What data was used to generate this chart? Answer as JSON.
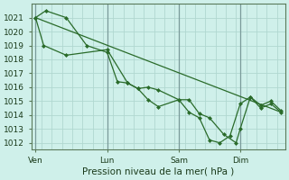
{
  "xlabel": "Pression niveau de la mer( hPa )",
  "bg_color": "#cff0ea",
  "grid_h_color": "#b0d8d0",
  "grid_v_color": "#b0d8d0",
  "major_line_color": "#7a9a9a",
  "line_color": "#2a6b2a",
  "marker_color": "#2a6b2a",
  "ylim": [
    1011.5,
    1022.0
  ],
  "yticks": [
    1012,
    1013,
    1014,
    1015,
    1016,
    1017,
    1018,
    1019,
    1020,
    1021
  ],
  "xtick_labels": [
    "Ven",
    "Lun",
    "Sam",
    "Dim"
  ],
  "xtick_positions": [
    0,
    3.5,
    7.0,
    10.0
  ],
  "xlim": [
    -0.2,
    12.2
  ],
  "series1_x": [
    0.0,
    0.4,
    1.5,
    3.5,
    4.5,
    5.0,
    5.5,
    6.0,
    7.0,
    7.5,
    8.0,
    8.5,
    9.2,
    9.8,
    10.0,
    10.5,
    11.0,
    11.5,
    12.0
  ],
  "series1_y": [
    1021.0,
    1019.0,
    1018.3,
    1018.7,
    1016.3,
    1015.9,
    1015.1,
    1014.6,
    1015.1,
    1015.1,
    1014.1,
    1013.8,
    1012.6,
    1012.0,
    1013.0,
    1015.3,
    1014.7,
    1015.0,
    1014.3
  ],
  "series2_x": [
    0.0,
    0.5,
    1.5,
    2.5,
    3.5,
    4.0,
    4.5,
    5.0,
    5.5,
    6.0,
    7.0,
    7.5,
    8.0,
    8.5,
    9.0,
    9.5,
    10.0,
    10.5,
    11.0,
    11.5,
    12.0
  ],
  "series2_y": [
    1021.0,
    1021.5,
    1021.0,
    1019.0,
    1018.5,
    1016.4,
    1016.3,
    1015.9,
    1016.0,
    1015.8,
    1015.1,
    1014.2,
    1013.8,
    1012.2,
    1012.0,
    1012.5,
    1014.8,
    1015.3,
    1014.5,
    1014.8,
    1014.2
  ],
  "series3_x": [
    0.0,
    12.0
  ],
  "series3_y": [
    1021.0,
    1014.2
  ]
}
